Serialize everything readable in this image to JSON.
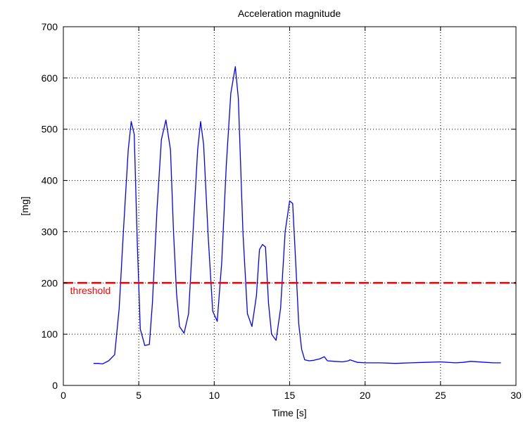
{
  "chart_data": {
    "type": "line",
    "title": "Acceleration magnitude",
    "xlabel": "Time [s]",
    "ylabel": "[mg]",
    "xlim": [
      0,
      30
    ],
    "ylim": [
      0,
      700
    ],
    "xticks": [
      0,
      5,
      10,
      15,
      20,
      25,
      30
    ],
    "yticks": [
      0,
      100,
      200,
      300,
      400,
      500,
      600,
      700
    ],
    "xtick_labels": [
      "0",
      "5",
      "10",
      "15",
      "20",
      "25",
      "30"
    ],
    "ytick_labels": [
      "0",
      "100",
      "200",
      "300",
      "400",
      "500",
      "600",
      "700"
    ],
    "grid": true,
    "grid_style": "dotted",
    "series": [
      {
        "color": "#0000ff",
        "style": "solid",
        "x": [
          2.0,
          2.3,
          2.6,
          3.0,
          3.4,
          3.7,
          4.0,
          4.3,
          4.5,
          4.7,
          4.9,
          5.1,
          5.4,
          5.7,
          5.9,
          6.2,
          6.5,
          6.8,
          7.1,
          7.3,
          7.5,
          7.7,
          8.0,
          8.3,
          8.6,
          8.9,
          9.1,
          9.3,
          9.6,
          9.9,
          10.2,
          10.5,
          10.8,
          11.1,
          11.4,
          11.6,
          11.9,
          12.2,
          12.5,
          12.8,
          13.0,
          13.2,
          13.4,
          13.6,
          13.8,
          14.1,
          14.4,
          14.7,
          15.0,
          15.2,
          15.4,
          15.6,
          15.8,
          16.0,
          16.3,
          16.6,
          17.0,
          17.3,
          17.5,
          18.0,
          18.5,
          18.9,
          19.0,
          19.5,
          20.0,
          21.0,
          22.0,
          23.0,
          24.0,
          25.0,
          26.0,
          26.5,
          27.0,
          28.0,
          28.5,
          29.0
        ],
        "y": [
          43,
          43,
          42,
          48,
          60,
          150,
          310,
          460,
          515,
          490,
          280,
          110,
          78,
          80,
          160,
          340,
          480,
          518,
          460,
          300,
          180,
          115,
          102,
          140,
          300,
          460,
          515,
          470,
          290,
          145,
          125,
          240,
          430,
          570,
          622,
          560,
          300,
          140,
          115,
          175,
          265,
          275,
          270,
          160,
          100,
          88,
          150,
          300,
          360,
          355,
          240,
          120,
          70,
          50,
          48,
          49,
          52,
          56,
          48,
          47,
          46,
          48,
          50,
          45,
          44,
          44,
          43,
          44,
          45,
          46,
          44,
          45,
          47,
          45,
          44,
          44
        ]
      },
      {
        "color": "#ff0000",
        "style": "dashed",
        "x": [
          0,
          30
        ],
        "y": [
          200,
          200
        ]
      }
    ],
    "annotations": [
      {
        "text": "threshold",
        "x": 0.45,
        "y": 185,
        "color": "#ff0000"
      }
    ]
  }
}
